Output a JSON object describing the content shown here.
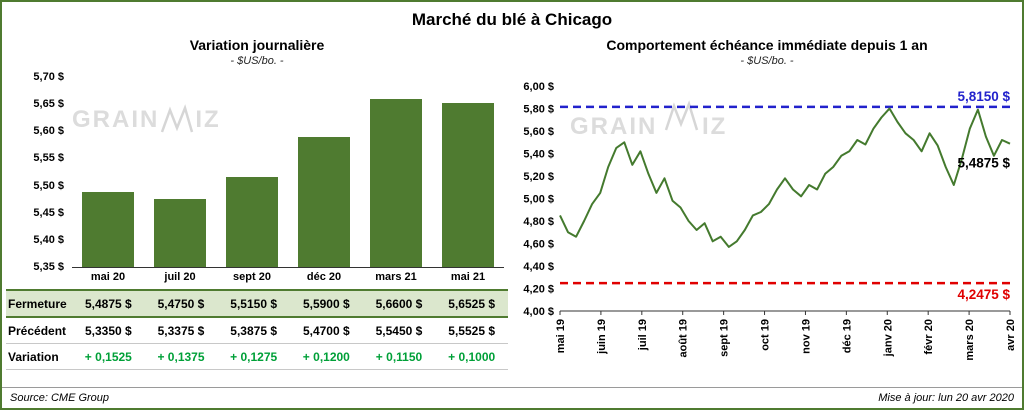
{
  "title": "Marché du blé à Chicago",
  "watermark": {
    "part1": "GRAIN",
    "part2": "IZ"
  },
  "footer": {
    "source": "Source: CME Group",
    "updated": "Mise à jour: lun 20 avr 2020"
  },
  "chart_data": [
    {
      "type": "bar",
      "title": "Variation journalière",
      "subtitle": "- $US/bo. -",
      "categories": [
        "mai 20",
        "juil 20",
        "sept 20",
        "déc 20",
        "mars 21",
        "mai 21"
      ],
      "values": [
        5.4875,
        5.475,
        5.515,
        5.59,
        5.66,
        5.6525
      ],
      "ylim": [
        5.35,
        5.7
      ],
      "ytick_step": 0.05,
      "yticks_labels": [
        "5,35 $",
        "5,40 $",
        "5,45 $",
        "5,50 $",
        "5,55 $",
        "5,60 $",
        "5,65 $",
        "5,70 $"
      ],
      "bar_color": "#4f7b30",
      "table": {
        "rows": [
          {
            "label": "Fermeture",
            "highlight": true,
            "values": [
              "5,4875 $",
              "5,4750 $",
              "5,5150 $",
              "5,5900 $",
              "5,6600 $",
              "5,6525 $"
            ]
          },
          {
            "label": "Précédent",
            "values": [
              "5,3350 $",
              "5,3375 $",
              "5,3875 $",
              "5,4700 $",
              "5,5450 $",
              "5,5525 $"
            ]
          },
          {
            "label": "Variation",
            "green": true,
            "values": [
              "+ 0,1525",
              "+ 0,1375",
              "+ 0,1275",
              "+ 0,1200",
              "+ 0,1150",
              "+ 0,1000"
            ]
          }
        ]
      }
    },
    {
      "type": "line",
      "title": "Comportement échéance immédiate depuis 1 an",
      "subtitle": "- $US/bo. -",
      "x_labels": [
        "mai 19",
        "juin 19",
        "juil 19",
        "août 19",
        "sept 19",
        "oct 19",
        "nov 19",
        "déc 19",
        "janv 20",
        "févr 20",
        "mars 20",
        "avr 20"
      ],
      "values": [
        4.85,
        4.7,
        4.66,
        4.8,
        4.95,
        5.05,
        5.28,
        5.45,
        5.5,
        5.3,
        5.42,
        5.22,
        5.05,
        5.18,
        4.98,
        4.92,
        4.8,
        4.72,
        4.78,
        4.62,
        4.66,
        4.57,
        4.62,
        4.72,
        4.85,
        4.88,
        4.95,
        5.08,
        5.18,
        5.08,
        5.02,
        5.12,
        5.08,
        5.22,
        5.28,
        5.38,
        5.42,
        5.52,
        5.48,
        5.62,
        5.72,
        5.8,
        5.68,
        5.58,
        5.52,
        5.42,
        5.58,
        5.47,
        5.28,
        5.12,
        5.35,
        5.62,
        5.79,
        5.55,
        5.38,
        5.52,
        5.4875
      ],
      "ylim": [
        4.0,
        6.0
      ],
      "ytick_step": 0.2,
      "yticks_labels": [
        "4,00 $",
        "4,20 $",
        "4,40 $",
        "4,60 $",
        "4,80 $",
        "5,00 $",
        "5,20 $",
        "5,40 $",
        "5,60 $",
        "5,80 $",
        "6,00 $"
      ],
      "line_color": "#447a2e",
      "ref_lines": [
        {
          "value": 5.815,
          "label": "5,8150 $",
          "color": "#2222cc"
        },
        {
          "value": 4.2475,
          "label": "4,2475 $",
          "color": "#e00000"
        }
      ],
      "end_label": {
        "value": 5.4875,
        "label": "5,4875 $",
        "color": "#000000"
      }
    }
  ]
}
